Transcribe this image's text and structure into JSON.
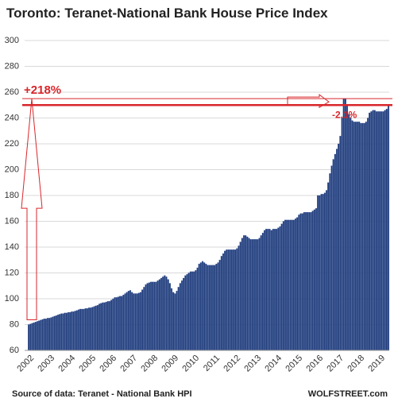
{
  "chart_data": {
    "type": "bar",
    "title": "Toronto:  Teranet-National  Bank House  Price Index",
    "source": "Source of data: Teranet - National Bank HPI",
    "credit": "WOLFSTREET.com",
    "annotations": [
      "+218%",
      "-2.1%"
    ],
    "color": "#1f3a78",
    "ylim": [
      60,
      300
    ],
    "yticks": [
      60,
      80,
      100,
      120,
      140,
      160,
      180,
      200,
      220,
      240,
      260,
      280,
      300
    ],
    "grid": true,
    "categories": [
      "2002",
      null,
      null,
      null,
      null,
      null,
      null,
      null,
      null,
      null,
      null,
      null,
      "2003",
      null,
      null,
      null,
      null,
      null,
      null,
      null,
      null,
      null,
      null,
      null,
      "2004",
      null,
      null,
      null,
      null,
      null,
      null,
      null,
      null,
      null,
      null,
      null,
      "2005",
      null,
      null,
      null,
      null,
      null,
      null,
      null,
      null,
      null,
      null,
      null,
      "2006",
      null,
      null,
      null,
      null,
      null,
      null,
      null,
      null,
      null,
      null,
      null,
      "2007",
      null,
      null,
      null,
      null,
      null,
      null,
      null,
      null,
      null,
      null,
      null,
      "2008",
      null,
      null,
      null,
      null,
      null,
      null,
      null,
      null,
      null,
      null,
      null,
      "2009",
      null,
      null,
      null,
      null,
      null,
      null,
      null,
      null,
      null,
      null,
      null,
      "2010",
      null,
      null,
      null,
      null,
      null,
      null,
      null,
      null,
      null,
      null,
      null,
      "2011",
      null,
      null,
      null,
      null,
      null,
      null,
      null,
      null,
      null,
      null,
      null,
      "2012",
      null,
      null,
      null,
      null,
      null,
      null,
      null,
      null,
      null,
      null,
      null,
      "2013",
      null,
      null,
      null,
      null,
      null,
      null,
      null,
      null,
      null,
      null,
      null,
      "2014",
      null,
      null,
      null,
      null,
      null,
      null,
      null,
      null,
      null,
      null,
      null,
      "2015",
      null,
      null,
      null,
      null,
      null,
      null,
      null,
      null,
      null,
      null,
      null,
      "2016",
      null,
      null,
      null,
      null,
      null,
      null,
      null,
      null,
      null,
      null,
      null,
      "2017",
      null,
      null,
      null,
      null,
      null,
      null,
      null,
      null,
      null,
      null,
      null,
      "2018",
      null,
      null,
      null,
      null,
      null,
      null,
      null,
      null,
      null,
      null,
      null,
      "2019",
      null,
      null,
      null,
      null,
      null
    ],
    "values": [
      80,
      80.5,
      81,
      81.5,
      82,
      82.5,
      83,
      83.5,
      84,
      84.5,
      84.5,
      85,
      85,
      85.5,
      86,
      86.5,
      87,
      87.5,
      88,
      88.5,
      88.5,
      89,
      89,
      89.5,
      89.5,
      90,
      90,
      90.5,
      91,
      91.5,
      92,
      92,
      92,
      92.5,
      92.5,
      93,
      93,
      93.5,
      94,
      94.5,
      95,
      96,
      96.5,
      97,
      97,
      97.5,
      98,
      98,
      99,
      100,
      101,
      101,
      101.5,
      102,
      102,
      103,
      104,
      105,
      106,
      106.5,
      105,
      104,
      104,
      104,
      104.5,
      105,
      107,
      109,
      111,
      112,
      112.5,
      113,
      113,
      113,
      113,
      114,
      115,
      116,
      117,
      118,
      117,
      115,
      112,
      108,
      105,
      104,
      106,
      109,
      112,
      114,
      116,
      118,
      119,
      120,
      121,
      121,
      121,
      122,
      124,
      127,
      128,
      129,
      128,
      127,
      126,
      126,
      126,
      126,
      126,
      127,
      128,
      130,
      133,
      135,
      137,
      138,
      138,
      138,
      138,
      138,
      138,
      139,
      141,
      144,
      147,
      149,
      149,
      148,
      147,
      146,
      146,
      146,
      146,
      146,
      147,
      149,
      151,
      153,
      154,
      154,
      154,
      153,
      154,
      154,
      154,
      155,
      156,
      158,
      160,
      161,
      161,
      161,
      161,
      161,
      161,
      162,
      163,
      165,
      166,
      166,
      167,
      167,
      167,
      167,
      167,
      168,
      169,
      170,
      180,
      180,
      181,
      181,
      182,
      184,
      190,
      197,
      203,
      208,
      212,
      216,
      220,
      226,
      240,
      255,
      255,
      250,
      243,
      240,
      238,
      237,
      237,
      237,
      237,
      236,
      236,
      236,
      237,
      240,
      244,
      245,
      246,
      246,
      245,
      245,
      245,
      245,
      245,
      246,
      247,
      250
    ]
  }
}
